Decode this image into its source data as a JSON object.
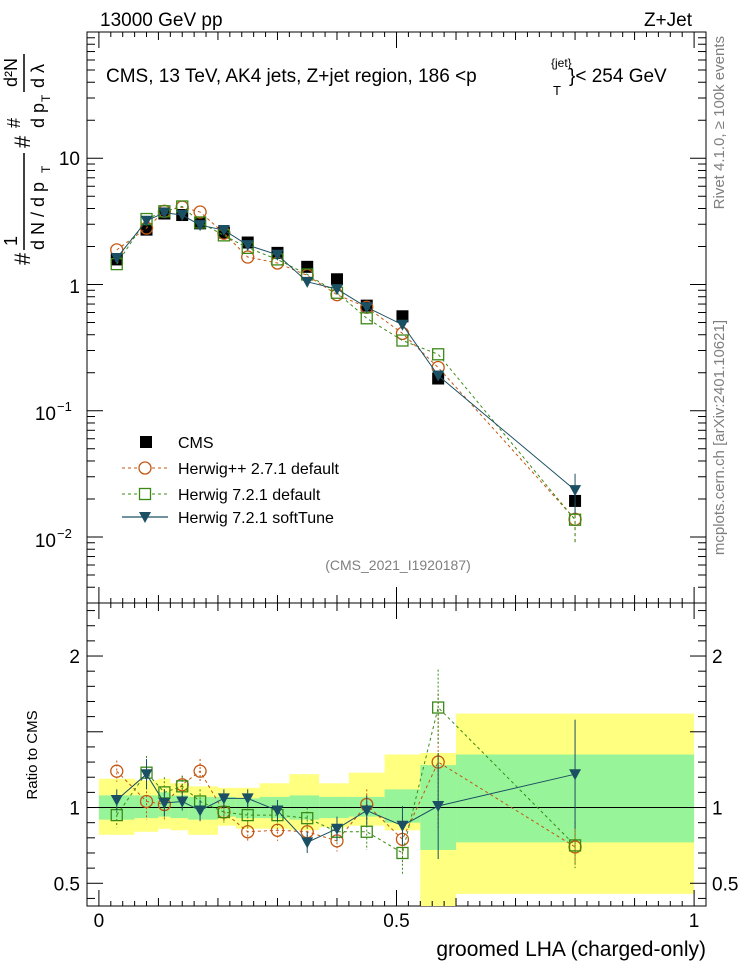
{
  "header": {
    "left": "13000 GeV pp",
    "right": "Z+Jet"
  },
  "side_labels": {
    "rivet": "Rivet 4.1.0, ≥ 100k events",
    "mcplots": "mcplots.cern.ch [arXiv:2401.10621]"
  },
  "chart_data": {
    "type": "scatter",
    "title": "CMS, 13 TeV, AK4 jets, Z+jet region, 186 <p",
    "title_sup": "{jet}",
    "title_sub": "T",
    "title_end": "}< 254 GeV",
    "analysis_id": "(CMS_2021_I1920187)",
    "xlabel": "groomed LHA (charged-only)",
    "ylabel_main": "dN/dpT dλ normalized",
    "ylabel_ratio": "Ratio to CMS",
    "xlim": [
      -0.02,
      1.02
    ],
    "ylim_main": [
      0.003,
      100
    ],
    "ylim_ratio": [
      0.35,
      2.35
    ],
    "yscale_main": "log",
    "x_ticks": [
      0,
      0.5,
      1
    ],
    "x_tick_labels": [
      "0",
      "0.5",
      "1"
    ],
    "y_main_tick_labels": {
      "ten": "10",
      "one": "1",
      "minus1": "10",
      "minus1_exp": "−1",
      "minus2": "10",
      "minus2_exp": "−2"
    },
    "y_ratio_ticks": [
      0.5,
      1,
      2
    ],
    "y_ratio_tick_labels": [
      "0.5",
      "1",
      "2"
    ],
    "legend": {
      "position": "center-left",
      "entries": [
        "CMS",
        "Herwig++ 2.7.1 default",
        "Herwig 7.2.1 default",
        "Herwig 7.2.1 softTune"
      ]
    },
    "x": [
      0.03,
      0.08,
      0.11,
      0.14,
      0.17,
      0.21,
      0.25,
      0.3,
      0.35,
      0.4,
      0.45,
      0.51,
      0.57,
      0.8
    ],
    "band_edges": [
      0.0,
      0.06,
      0.1,
      0.12,
      0.15,
      0.2,
      0.23,
      0.27,
      0.32,
      0.37,
      0.42,
      0.48,
      0.54,
      0.6,
      1.0
    ],
    "ratio_band_yellow": [
      [
        0.82,
        1.19
      ],
      [
        0.84,
        1.18
      ],
      [
        0.86,
        1.19
      ],
      [
        0.85,
        1.16
      ],
      [
        0.82,
        1.14
      ],
      [
        0.88,
        1.13
      ],
      [
        0.86,
        1.13
      ],
      [
        0.86,
        1.16
      ],
      [
        0.85,
        1.22
      ],
      [
        0.87,
        1.16
      ],
      [
        0.88,
        1.23
      ],
      [
        0.85,
        1.35
      ],
      [
        0.35,
        1.36
      ],
      [
        0.43,
        1.62
      ]
    ],
    "ratio_band_green": [
      [
        0.92,
        1.08
      ],
      [
        0.93,
        1.08
      ],
      [
        0.94,
        1.1
      ],
      [
        0.93,
        1.08
      ],
      [
        0.92,
        1.07
      ],
      [
        0.94,
        1.07
      ],
      [
        0.93,
        1.06
      ],
      [
        0.93,
        1.07
      ],
      [
        0.92,
        1.08
      ],
      [
        0.93,
        1.07
      ],
      [
        0.94,
        1.07
      ],
      [
        0.9,
        1.12
      ],
      [
        0.72,
        1.28
      ],
      [
        0.77,
        1.35
      ]
    ],
    "series": [
      {
        "name": "CMS",
        "color": "#000000",
        "marker": "square-filled",
        "values": [
          1.58,
          2.72,
          3.65,
          3.55,
          3.05,
          2.58,
          2.15,
          1.78,
          1.38,
          1.1,
          0.68,
          0.56,
          0.18,
          0.0193
        ]
      },
      {
        "name": "Herwig++ 2.7.1 default",
        "color": "#c45711",
        "marker": "circle-open",
        "values": [
          1.88,
          2.8,
          3.8,
          4.1,
          3.75,
          2.55,
          1.65,
          1.48,
          1.18,
          0.83,
          0.66,
          0.41,
          0.22,
          0.0138
        ],
        "ratio": [
          1.24,
          1.04,
          1.02,
          1.15,
          1.24,
          0.97,
          0.84,
          0.85,
          0.84,
          0.78,
          1.02,
          0.79,
          1.3,
          0.74
        ],
        "ratio_err": [
          0.07,
          0.12,
          0.1,
          0.06,
          0.08,
          0.06,
          0.06,
          0.07,
          0.06,
          0.07,
          0.1,
          0.15,
          0.45,
          0.12
        ]
      },
      {
        "name": "Herwig 7.2.1 default",
        "color": "#3b8a17",
        "marker": "square-open",
        "values": [
          1.45,
          3.3,
          3.8,
          4.15,
          3.1,
          2.45,
          1.95,
          1.58,
          1.2,
          0.86,
          0.54,
          0.36,
          0.28,
          0.0137
        ],
        "ratio": [
          0.95,
          1.23,
          1.1,
          1.14,
          1.04,
          0.97,
          0.95,
          0.95,
          0.93,
          0.84,
          0.84,
          0.7,
          1.66,
          0.75
        ],
        "ratio_err": [
          0.08,
          0.11,
          0.1,
          0.07,
          0.08,
          0.07,
          0.07,
          0.07,
          0.07,
          0.08,
          0.12,
          0.14,
          0.25,
          0.15
        ]
      },
      {
        "name": "Herwig 7.2.1 softTune",
        "color": "#1b4f63",
        "marker": "triangle-down-filled",
        "values": [
          1.62,
          3.2,
          3.7,
          3.55,
          2.95,
          2.7,
          2.05,
          1.72,
          1.05,
          0.92,
          0.66,
          0.48,
          0.19,
          0.0235
        ],
        "ratio": [
          1.05,
          1.22,
          1.03,
          1.04,
          0.98,
          1.06,
          1.06,
          0.98,
          0.77,
          0.86,
          0.98,
          0.88,
          1.01,
          1.22
        ],
        "ratio_err": [
          0.07,
          0.1,
          0.09,
          0.06,
          0.07,
          0.06,
          0.06,
          0.07,
          0.07,
          0.08,
          0.1,
          0.13,
          0.35,
          0.36
        ]
      }
    ]
  }
}
